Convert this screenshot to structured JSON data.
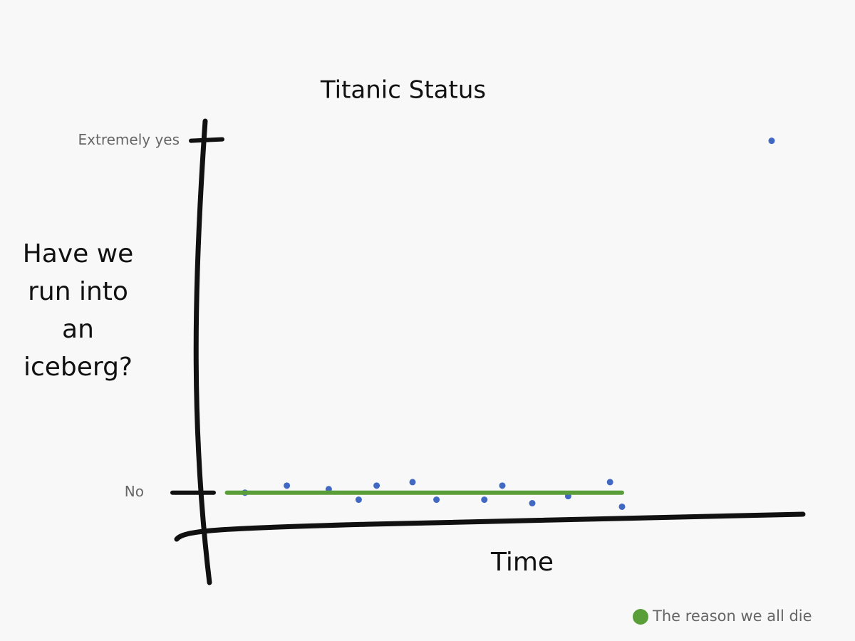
{
  "chart_data": {
    "type": "scatter",
    "title": "Titanic Status",
    "ylabel": "Have we run into an iceberg?",
    "xlabel": "Time",
    "xlim": [
      0,
      100
    ],
    "ylim": [
      -0.12,
      1.06
    ],
    "yticks": [
      {
        "value": 0,
        "label": "No"
      },
      {
        "value": 1,
        "label": "Extremely yes"
      }
    ],
    "legend": "bottom-right",
    "series": [
      {
        "type": "scatter",
        "color": "#4169c4",
        "x": [
          7,
          14,
          21,
          26,
          29,
          35,
          39,
          47,
          50,
          55,
          61,
          68,
          70,
          95
        ],
        "values": [
          0,
          0.02,
          0.01,
          -0.02,
          0.02,
          0.03,
          -0.02,
          -0.02,
          0.02,
          -0.03,
          -0.01,
          0.03,
          -0.04,
          1
        ]
      },
      {
        "type": "line",
        "name": "The reason we all die",
        "color": "#5a9e3a",
        "x": [
          4,
          70
        ],
        "values": [
          0,
          0
        ]
      }
    ]
  }
}
